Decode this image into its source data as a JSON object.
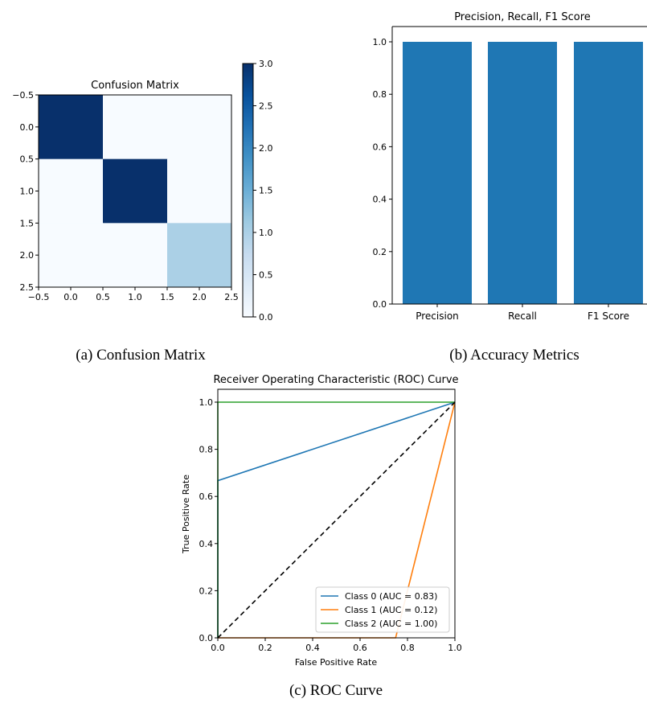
{
  "chart_data": [
    {
      "type": "heatmap",
      "title": "Confusion Matrix",
      "matrix": [
        [
          3,
          0,
          0
        ],
        [
          0,
          3,
          0
        ],
        [
          0,
          0,
          1
        ]
      ],
      "xlim": [
        -0.5,
        2.5
      ],
      "ylim": [
        2.5,
        -0.5
      ],
      "xticks": [
        "−0.5",
        "0.0",
        "0.5",
        "1.0",
        "1.5",
        "2.0",
        "2.5"
      ],
      "yticks": [
        "−0.5",
        "0.0",
        "0.5",
        "1.0",
        "1.5",
        "2.0",
        "2.5"
      ],
      "colormap": "Blues",
      "colorbar": {
        "range": [
          0,
          3
        ],
        "ticks": [
          "0.0",
          "0.5",
          "1.0",
          "1.5",
          "2.0",
          "2.5",
          "3.0"
        ]
      },
      "caption": "(a) Confusion Matrix"
    },
    {
      "type": "bar",
      "title": "Precision, Recall, F1 Score",
      "categories": [
        "Precision",
        "Recall",
        "F1 Score"
      ],
      "values": [
        1.0,
        1.0,
        1.0
      ],
      "ylim": [
        0,
        1.05
      ],
      "yticks": [
        "0.0",
        "0.2",
        "0.4",
        "0.6",
        "0.8",
        "1.0"
      ],
      "bar_color": "#1f77b4",
      "caption": "(b) Accuracy Metrics"
    },
    {
      "type": "line",
      "title": "Receiver Operating Characteristic (ROC) Curve",
      "xlabel": "False Positive Rate",
      "ylabel": "True Positive Rate",
      "xlim": [
        0,
        1
      ],
      "ylim": [
        0,
        1.05
      ],
      "xticks": [
        "0.0",
        "0.2",
        "0.4",
        "0.6",
        "0.8",
        "1.0"
      ],
      "yticks": [
        "0.0",
        "0.2",
        "0.4",
        "0.6",
        "0.8",
        "1.0"
      ],
      "series": [
        {
          "name": "Class 0 (AUC = 0.83)",
          "color": "#1f77b4",
          "x": [
            0,
            0,
            1
          ],
          "y": [
            0,
            0.667,
            1
          ]
        },
        {
          "name": "Class 1 (AUC = 0.12)",
          "color": "#ff7f0e",
          "x": [
            0,
            0.75,
            1
          ],
          "y": [
            0,
            0,
            1
          ]
        },
        {
          "name": "Class 2 (AUC = 1.00)",
          "color": "#2ca02c",
          "x": [
            0,
            0,
            1
          ],
          "y": [
            0,
            1,
            1
          ]
        }
      ],
      "diagonal": {
        "color": "#000000",
        "style": "dashed"
      },
      "legend_position": "lower-right",
      "caption": "(c) ROC Curve"
    }
  ]
}
